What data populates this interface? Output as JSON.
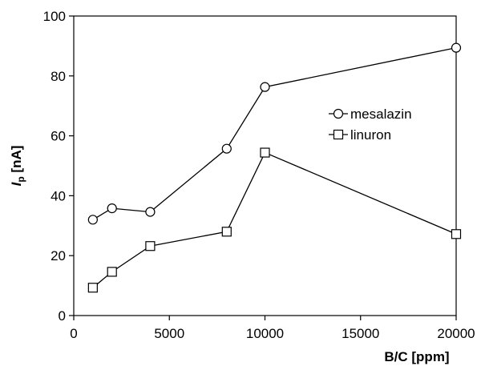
{
  "chart_data": {
    "type": "line",
    "title": "",
    "xlabel": "B/C [ppm]",
    "ylabel_main": "I",
    "ylabel_sub": "p",
    "ylabel_unit": " [nA]",
    "xlim": [
      0,
      20000
    ],
    "ylim": [
      0,
      100
    ],
    "xticks": [
      0,
      5000,
      10000,
      15000,
      20000
    ],
    "yticks": [
      0,
      20,
      40,
      60,
      80,
      100
    ],
    "grid": false,
    "legend_position": "right",
    "series": [
      {
        "name": "mesalazin",
        "marker": "circle",
        "x": [
          1000,
          2000,
          4000,
          8000,
          10000,
          20000
        ],
        "y": [
          32,
          35.8,
          34.6,
          55.7,
          76.3,
          89.4
        ]
      },
      {
        "name": "linuron",
        "marker": "square",
        "x": [
          1000,
          2000,
          4000,
          8000,
          10000,
          20000
        ],
        "y": [
          9.3,
          14.6,
          23.2,
          28,
          54.4,
          27.2
        ]
      }
    ],
    "colors": {
      "line": "#000000",
      "marker_fill": "#ffffff"
    }
  }
}
